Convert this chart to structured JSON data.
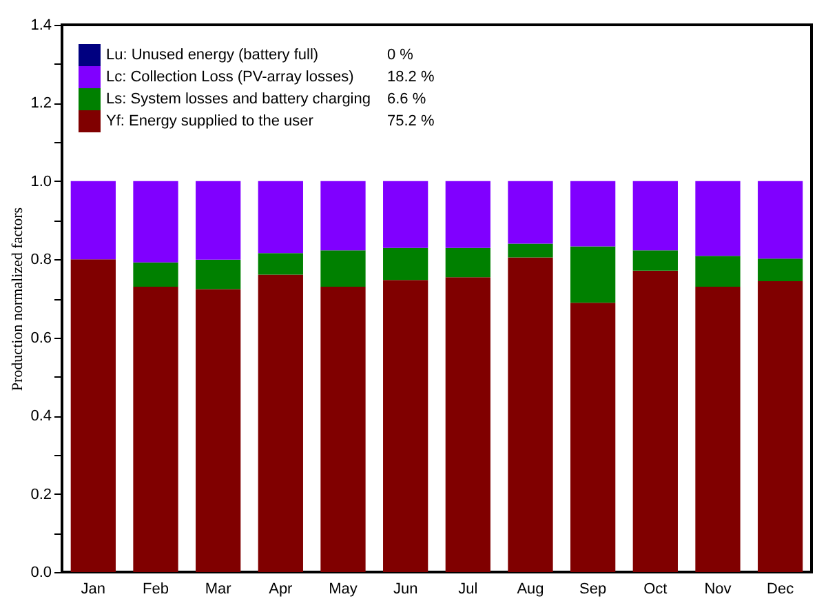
{
  "chart_data": {
    "type": "bar",
    "stacked": true,
    "ylabel": "Production normalized factors",
    "categories": [
      "Jan",
      "Feb",
      "Mar",
      "Apr",
      "May",
      "Jun",
      "Jul",
      "Aug",
      "Sep",
      "Oct",
      "Nov",
      "Dec"
    ],
    "series": [
      {
        "name": "Yf: Energy supplied to the user",
        "color": "#800000",
        "values": [
          0.8,
          0.73,
          0.724,
          0.761,
          0.73,
          0.747,
          0.754,
          0.805,
          0.689,
          0.771,
          0.73,
          0.744
        ]
      },
      {
        "name": "Ls: System losses and battery charging",
        "color": "#008000",
        "values": [
          0,
          0.062,
          0.075,
          0.055,
          0.093,
          0.082,
          0.075,
          0.035,
          0.144,
          0.052,
          0.079,
          0.058
        ]
      },
      {
        "name": "Lc: Collection Loss (PV-array losses)",
        "color": "#8000ff",
        "values": [
          0.2,
          0.208,
          0.201,
          0.184,
          0.177,
          0.171,
          0.171,
          0.16,
          0.167,
          0.177,
          0.191,
          0.198
        ]
      },
      {
        "name": "Lu: Unused energy (battery full)",
        "color": "#000080",
        "values": [
          0,
          0,
          0,
          0,
          0,
          0,
          0,
          0,
          0,
          0,
          0,
          0
        ]
      }
    ],
    "annotations": [
      "75.2 %",
      "6.6 %",
      "18.2 %",
      "0 %"
    ],
    "ylim": [
      0,
      1.4
    ],
    "yticks": [
      {
        "value": 0,
        "label": "0.0"
      },
      {
        "value": 0.1,
        "label": null
      },
      0.2,
      {
        "value": 0.3,
        "label": null
      },
      0.4,
      {
        "value": 0.5,
        "label": null
      },
      0.6,
      {
        "value": 0.7,
        "label": null
      },
      0.8,
      {
        "value": 0.9,
        "label": null
      },
      {
        "value": 1,
        "label": "1.0"
      },
      {
        "value": 1.1,
        "label": null
      },
      1.2,
      {
        "value": 1.3,
        "label": null
      },
      1.4
    ],
    "legend": "top left",
    "grid": false
  }
}
